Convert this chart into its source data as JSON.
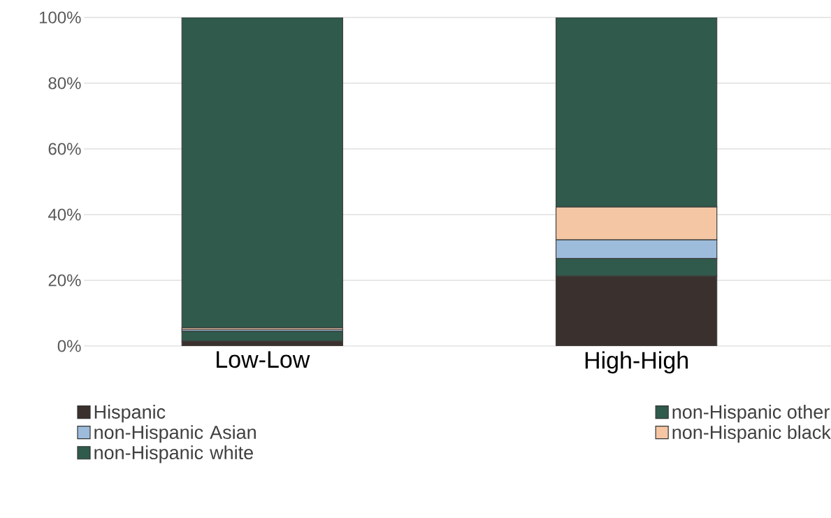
{
  "chart_data": {
    "type": "bar",
    "stacked": true,
    "categories": [
      "Low-Low",
      "High-High"
    ],
    "series": [
      {
        "name": "Hispanic",
        "color": "#3a302d",
        "values": [
          1.5,
          21.3
        ]
      },
      {
        "name": "non-Hispanic other",
        "color": "#2f5a4c",
        "values": [
          3,
          5.3
        ]
      },
      {
        "name": "non-Hispanic Asian",
        "color": "#9dbcdc",
        "values": [
          0.5,
          5.7
        ]
      },
      {
        "name": "non-Hispanic black",
        "color": "#f5c6a4",
        "values": [
          0.5,
          10
        ]
      },
      {
        "name": "non-Hispanic white",
        "color": "#2f5a4c",
        "values": [
          94.5,
          57.7
        ]
      }
    ],
    "ylim": [
      0,
      100
    ],
    "yticks": [
      {
        "value": 0,
        "label": "0%"
      },
      {
        "value": 20,
        "label": "20%"
      },
      {
        "value": 40,
        "label": "40%"
      },
      {
        "value": 60,
        "label": "60%"
      },
      {
        "value": 80,
        "label": "80%"
      },
      {
        "value": 100,
        "label": "100%"
      }
    ],
    "grid": "y",
    "legend": "bottom"
  }
}
